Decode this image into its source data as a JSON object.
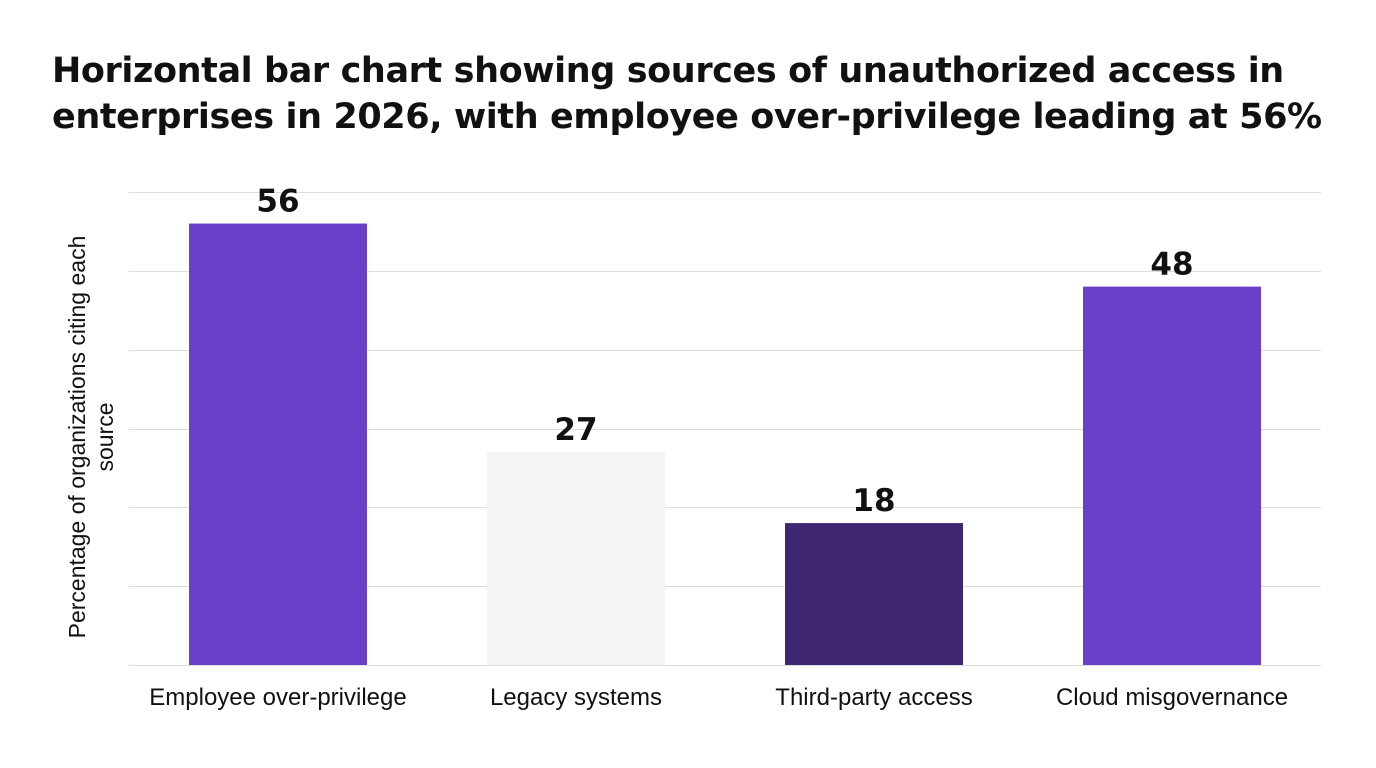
{
  "chart_data": {
    "type": "bar",
    "title": "Horizontal bar chart showing sources of unauthorized access in enterprises in 2026, with employee over-privilege leading at 56%",
    "xlabel": "",
    "ylabel": "Percentage of organizations citing each source",
    "categories": [
      "Employee over-privilege",
      "Legacy systems",
      "Third-party access",
      "Cloud misgovernance"
    ],
    "values": [
      56,
      27,
      18,
      48
    ],
    "data_labels": [
      "56",
      "27",
      "18",
      "48"
    ],
    "bar_colors": [
      "#6941c9",
      "#f4f4f4",
      "#3e2673",
      "#6941c9"
    ],
    "ylim": [
      0,
      60
    ],
    "grid": true,
    "gridline_color": "#dddddd",
    "legend": "none"
  }
}
